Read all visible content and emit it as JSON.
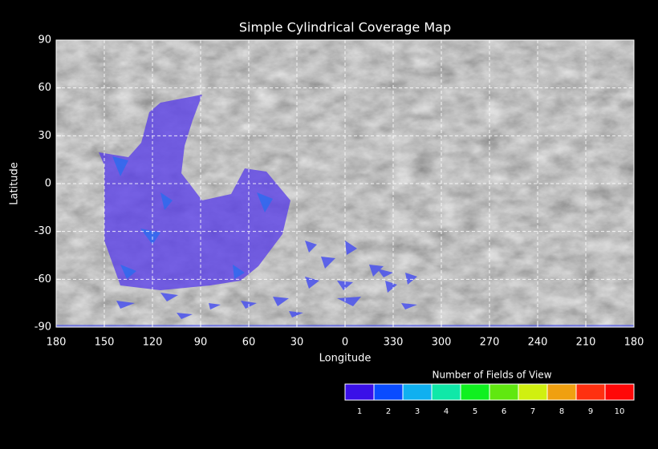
{
  "chart_data": {
    "type": "map",
    "title": "Simple Cylindrical Coverage Map",
    "x_label": "Longitude",
    "y_label": "Latitude",
    "xlim": [
      180,
      -180
    ],
    "xticks": [
      180,
      150,
      120,
      90,
      60,
      30,
      0,
      {
        "value": -30,
        "label": "330"
      },
      {
        "value": -60,
        "label": "300"
      },
      {
        "value": -90,
        "label": "270"
      },
      {
        "value": -120,
        "label": "240"
      },
      {
        "value": -150,
        "label": "210"
      },
      {
        "value": -180,
        "label": "180"
      }
    ],
    "ylim": [
      -90,
      90
    ],
    "yticks": [
      -90,
      -60,
      -30,
      0,
      30,
      60,
      90
    ],
    "grid": true,
    "colorbar": {
      "title": "Number of Fields of View",
      "levels": [
        1,
        2,
        3,
        4,
        5,
        6,
        7,
        8,
        9,
        10
      ],
      "colors": [
        "#3a10e8",
        "#0a4cff",
        "#10b0f0",
        "#10e8a8",
        "#10f020",
        "#60e810",
        "#d0f010",
        "#f0a010",
        "#ff3010",
        "#ff0808"
      ]
    }
  }
}
